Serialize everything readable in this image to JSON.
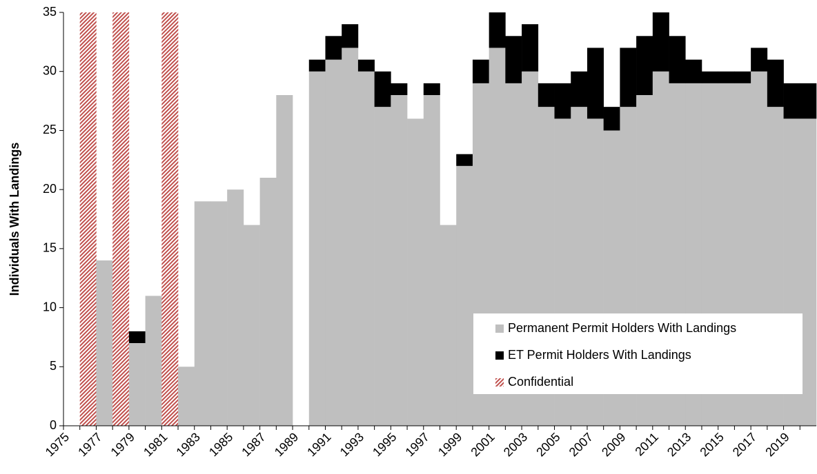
{
  "chart_data": {
    "type": "stacked-bar",
    "ylabel": "Individuals With Landings",
    "categories": [
      "1975",
      null,
      "1977",
      null,
      "1979",
      null,
      "1981",
      null,
      "1983",
      null,
      "1985",
      null,
      "1987",
      null,
      "1989",
      null,
      "1991",
      null,
      "1993",
      null,
      "1995",
      null,
      "1997",
      null,
      "1999",
      null,
      "2001",
      null,
      "2003",
      null,
      "2005",
      null,
      "2007",
      null,
      "2009",
      null,
      "2011",
      null,
      "2013",
      null,
      "2015",
      null,
      "2017",
      null,
      "2019",
      null
    ],
    "series": [
      {
        "name": "Permanent Permit Holders With Landings",
        "color": "#bfbfbf",
        "values": [
          null,
          null,
          14,
          null,
          7,
          11,
          null,
          5,
          19,
          19,
          20,
          17,
          21,
          28,
          null,
          30,
          31,
          32,
          30,
          27,
          28,
          26,
          28,
          17,
          22,
          29,
          32,
          29,
          30,
          27,
          26,
          27,
          26,
          25,
          27,
          28,
          30,
          29,
          29,
          29,
          29,
          29,
          30,
          27,
          26,
          26
        ]
      },
      {
        "name": "ET Permit Holders With Landings",
        "color": "#000000",
        "values": [
          null,
          null,
          null,
          null,
          1,
          null,
          null,
          null,
          null,
          null,
          null,
          null,
          null,
          null,
          null,
          1,
          2,
          2,
          1,
          3,
          1,
          null,
          1,
          null,
          1,
          2,
          3,
          4,
          4,
          2,
          3,
          3,
          6,
          2,
          5,
          5,
          5,
          4,
          2,
          1,
          1,
          1,
          2,
          4,
          3,
          3
        ]
      },
      {
        "name": "Confidential",
        "color": "#c0504d",
        "pattern": "hatch",
        "values": [
          null,
          35,
          null,
          35,
          null,
          null,
          35,
          null,
          null,
          null,
          null,
          null,
          null,
          null,
          null,
          null,
          null,
          null,
          null,
          null,
          null,
          null,
          null,
          null,
          null,
          null,
          null,
          null,
          null,
          null,
          null,
          null,
          null,
          null,
          null,
          null,
          null,
          null,
          null,
          null,
          null,
          null,
          null,
          null,
          null,
          null
        ]
      }
    ],
    "ylim": [
      0,
      35
    ],
    "yticks": [
      0,
      5,
      10,
      15,
      20,
      25,
      30,
      35
    ],
    "grid": false,
    "legend": "lower right"
  }
}
